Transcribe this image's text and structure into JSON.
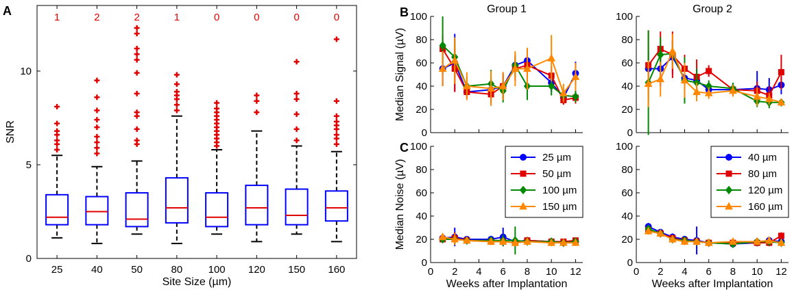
{
  "chart_data": [
    {
      "panel": "A",
      "type": "box",
      "xlabel": "Site Size (µm)",
      "ylabel": "SNR",
      "ylim": [
        0,
        13.5
      ],
      "yticks": [
        0,
        5,
        10
      ],
      "categories": [
        "25",
        "40",
        "50",
        "80",
        "100",
        "120",
        "150",
        "160"
      ],
      "counts": [
        "1",
        "2",
        "2",
        "1",
        "0",
        "0",
        "0",
        "0"
      ],
      "boxes": [
        {
          "whisker_low": 1.1,
          "q1": 1.8,
          "median": 2.2,
          "q3": 3.4,
          "whisker_high": 5.5,
          "outliers": [
            5.8,
            6.1,
            6.3,
            6.6,
            6.8,
            7.2,
            8.1
          ]
        },
        {
          "whisker_low": 0.8,
          "q1": 1.8,
          "median": 2.5,
          "q3": 3.3,
          "whisker_high": 4.9,
          "outliers": [
            5.6,
            5.9,
            6.2,
            6.5,
            7.0,
            7.4,
            7.9,
            8.6,
            9.5
          ]
        },
        {
          "whisker_low": 1.3,
          "q1": 1.7,
          "median": 2.1,
          "q3": 3.5,
          "whisker_high": 5.2,
          "outliers": [
            6.1,
            6.3,
            6.9,
            7.6,
            7.8,
            8.8,
            9.9,
            10.6,
            10.9,
            11.2,
            12.0,
            12.3
          ]
        },
        {
          "whisker_low": 0.8,
          "q1": 1.9,
          "median": 2.7,
          "q3": 4.3,
          "whisker_high": 7.6,
          "outliers": [
            7.9,
            8.2,
            8.5,
            8.7,
            8.9,
            9.3,
            9.8
          ]
        },
        {
          "whisker_low": 1.3,
          "q1": 1.7,
          "median": 2.2,
          "q3": 3.5,
          "whisker_high": 5.8,
          "outliers": [
            6.0,
            6.2,
            6.4,
            6.6,
            6.8,
            7.0,
            7.2,
            7.4,
            7.6,
            7.8,
            8.0,
            8.3
          ]
        },
        {
          "whisker_low": 0.9,
          "q1": 1.8,
          "median": 2.7,
          "q3": 3.9,
          "whisker_high": 6.8,
          "outliers": [
            7.8,
            8.4,
            8.7
          ]
        },
        {
          "whisker_low": 1.3,
          "q1": 1.8,
          "median": 2.3,
          "q3": 3.7,
          "whisker_high": 6.0,
          "outliers": [
            6.3,
            6.9,
            7.7,
            8.5,
            8.8,
            10.5
          ]
        },
        {
          "whisker_low": 0.9,
          "q1": 2.0,
          "median": 2.7,
          "q3": 3.6,
          "whisker_high": 5.7,
          "outliers": [
            6.1,
            6.4,
            6.6,
            6.9,
            7.1,
            7.3,
            7.6,
            8.4,
            11.7
          ]
        }
      ]
    },
    {
      "panel": "B",
      "type": "line",
      "title": "Group 1",
      "ylabel": "Median Signal (µV)",
      "ylim": [
        0,
        100
      ],
      "xlim": [
        0,
        12.6
      ],
      "yticks": [
        0,
        20,
        40,
        60,
        80,
        100
      ],
      "series": [
        {
          "name": "25 µm",
          "color": "#0000ff",
          "marker": "circle",
          "x": [
            1,
            2,
            3,
            5,
            6,
            7,
            8,
            10,
            11,
            12
          ],
          "y": [
            55,
            60,
            35,
            37,
            40,
            58,
            62,
            43,
            30,
            51
          ],
          "err": [
            15,
            25,
            5,
            10,
            10,
            8,
            10,
            8,
            5,
            10
          ]
        },
        {
          "name": "50 µm",
          "color": "#e00000",
          "marker": "square",
          "x": [
            1,
            2,
            3,
            5,
            6,
            7,
            8,
            10,
            11,
            12
          ],
          "y": [
            72,
            55,
            35,
            33,
            40,
            55,
            58,
            49,
            28,
            30
          ],
          "err": [
            12,
            20,
            5,
            8,
            12,
            10,
            10,
            8,
            4,
            5
          ]
        },
        {
          "name": "100 µm",
          "color": "#008800",
          "marker": "diamond",
          "x": [
            1,
            2,
            3,
            5,
            6,
            7,
            8,
            10,
            11,
            12
          ],
          "y": [
            75,
            65,
            40,
            42,
            36,
            58,
            40,
            40,
            32,
            31
          ],
          "err": [
            25,
            15,
            8,
            12,
            10,
            10,
            12,
            8,
            5,
            5
          ]
        },
        {
          "name": "150 µm",
          "color": "#ff8800",
          "marker": "triangle",
          "x": [
            1,
            2,
            3,
            5,
            6,
            7,
            8,
            10,
            11,
            12
          ],
          "y": [
            55,
            62,
            40,
            38,
            40,
            55,
            55,
            64,
            34,
            48
          ],
          "err": [
            15,
            20,
            12,
            15,
            12,
            15,
            18,
            20,
            8,
            12
          ]
        }
      ]
    },
    {
      "panel": "B",
      "type": "line",
      "title": "Group 2",
      "ylim": [
        0,
        100
      ],
      "xlim": [
        0,
        12.6
      ],
      "yticks": [
        0,
        20,
        40,
        60,
        80,
        100
      ],
      "series": [
        {
          "name": "40 µm",
          "color": "#0000ff",
          "marker": "circle",
          "x": [
            1,
            2,
            3,
            4,
            5,
            6,
            8,
            10,
            11,
            12
          ],
          "y": [
            55,
            55,
            65,
            47,
            45,
            37,
            37,
            38,
            37,
            41
          ],
          "err": [
            15,
            15,
            15,
            12,
            10,
            5,
            5,
            15,
            10,
            8
          ]
        },
        {
          "name": "80 µm",
          "color": "#e00000",
          "marker": "square",
          "x": [
            1,
            2,
            3,
            4,
            5,
            6,
            8,
            10,
            11,
            12
          ],
          "y": [
            58,
            72,
            67,
            55,
            48,
            53,
            37,
            36,
            32,
            52
          ],
          "err": [
            30,
            15,
            20,
            12,
            15,
            5,
            5,
            8,
            8,
            15
          ]
        },
        {
          "name": "120 µm",
          "color": "#008800",
          "marker": "diamond",
          "x": [
            1,
            2,
            3,
            4,
            5,
            6,
            8,
            10,
            11,
            12
          ],
          "y": [
            43,
            67,
            68,
            45,
            43,
            40,
            38,
            27,
            26,
            26
          ],
          "err": [
            45,
            15,
            10,
            20,
            12,
            5,
            5,
            5,
            5,
            3
          ]
        },
        {
          "name": "160 µm",
          "color": "#ff8800",
          "marker": "triangle",
          "x": [
            1,
            2,
            3,
            4,
            5,
            6,
            8,
            10,
            11,
            12
          ],
          "y": [
            42,
            46,
            70,
            45,
            35,
            34,
            36,
            31,
            29,
            26
          ],
          "err": [
            20,
            15,
            15,
            15,
            8,
            5,
            5,
            8,
            5,
            3
          ]
        }
      ]
    },
    {
      "panel": "C",
      "type": "line",
      "ylabel": "Median Noise (µV)",
      "xlabel": "Weeks after Implantation",
      "ylim": [
        0,
        100
      ],
      "xlim": [
        0,
        12.6
      ],
      "yticks": [
        0,
        20,
        40,
        60,
        80,
        100
      ],
      "xticks": [
        0,
        2,
        4,
        6,
        8,
        10,
        12
      ],
      "legend": "top-right",
      "series": [
        {
          "name": "25 µm",
          "color": "#0000ff",
          "marker": "circle",
          "x": [
            1,
            2,
            3,
            5,
            6,
            7,
            8,
            10,
            11,
            12
          ],
          "y": [
            21,
            22,
            20,
            20,
            22,
            18,
            19,
            18,
            17,
            18
          ],
          "err": [
            3,
            8,
            2,
            3,
            8,
            3,
            3,
            3,
            3,
            2
          ]
        },
        {
          "name": "50 µm",
          "color": "#e00000",
          "marker": "square",
          "x": [
            1,
            2,
            3,
            5,
            6,
            7,
            8,
            10,
            11,
            12
          ],
          "y": [
            20,
            21,
            19,
            18,
            18,
            17,
            19,
            18,
            18,
            19
          ],
          "err": [
            3,
            5,
            2,
            3,
            3,
            3,
            3,
            3,
            2,
            2
          ]
        },
        {
          "name": "100 µm",
          "color": "#008800",
          "marker": "diamond",
          "x": [
            1,
            2,
            3,
            5,
            6,
            7,
            8,
            10,
            11,
            12
          ],
          "y": [
            20,
            20,
            19,
            19,
            19,
            19,
            18,
            18,
            17,
            18
          ],
          "err": [
            3,
            5,
            2,
            3,
            5,
            12,
            3,
            3,
            2,
            2
          ]
        },
        {
          "name": "150 µm",
          "color": "#ff8800",
          "marker": "triangle",
          "x": [
            1,
            2,
            3,
            5,
            6,
            7,
            8,
            10,
            11,
            12
          ],
          "y": [
            22,
            20,
            19,
            18,
            18,
            17,
            18,
            17,
            17,
            17
          ],
          "err": [
            3,
            5,
            2,
            3,
            3,
            3,
            3,
            3,
            2,
            2
          ]
        }
      ]
    },
    {
      "panel": "C",
      "type": "line",
      "xlabel": "Weeks after Implantation",
      "ylim": [
        0,
        100
      ],
      "xlim": [
        0,
        12.6
      ],
      "yticks": [
        0,
        20,
        40,
        60,
        80,
        100
      ],
      "xticks": [
        0,
        2,
        4,
        6,
        8,
        10,
        12
      ],
      "legend": "top-right",
      "series": [
        {
          "name": "40 µm",
          "color": "#0000ff",
          "marker": "circle",
          "x": [
            1,
            2,
            3,
            4,
            5,
            6,
            8,
            10,
            11,
            12
          ],
          "y": [
            31,
            26,
            22,
            20,
            19,
            17,
            16,
            17,
            19,
            18
          ],
          "err": [
            3,
            3,
            3,
            3,
            12,
            3,
            2,
            3,
            3,
            3
          ]
        },
        {
          "name": "80 µm",
          "color": "#e00000",
          "marker": "square",
          "x": [
            1,
            2,
            3,
            4,
            5,
            6,
            8,
            10,
            11,
            12
          ],
          "y": [
            28,
            25,
            21,
            19,
            18,
            17,
            17,
            17,
            17,
            23
          ],
          "err": [
            3,
            3,
            3,
            3,
            3,
            3,
            2,
            3,
            3,
            3
          ]
        },
        {
          "name": "120 µm",
          "color": "#008800",
          "marker": "diamond",
          "x": [
            1,
            2,
            3,
            4,
            5,
            6,
            8,
            10,
            11,
            12
          ],
          "y": [
            29,
            25,
            20,
            19,
            18,
            17,
            16,
            18,
            18,
            17
          ],
          "err": [
            3,
            3,
            3,
            3,
            3,
            3,
            2,
            3,
            3,
            3
          ]
        },
        {
          "name": "160 µm",
          "color": "#ff8800",
          "marker": "triangle",
          "x": [
            1,
            2,
            3,
            4,
            5,
            6,
            8,
            10,
            11,
            12
          ],
          "y": [
            27,
            25,
            20,
            18,
            18,
            17,
            18,
            18,
            19,
            17
          ],
          "err": [
            3,
            3,
            3,
            3,
            3,
            3,
            2,
            3,
            3,
            3
          ]
        }
      ]
    }
  ],
  "labels": {
    "A": "A",
    "B": "B",
    "C": "C"
  }
}
